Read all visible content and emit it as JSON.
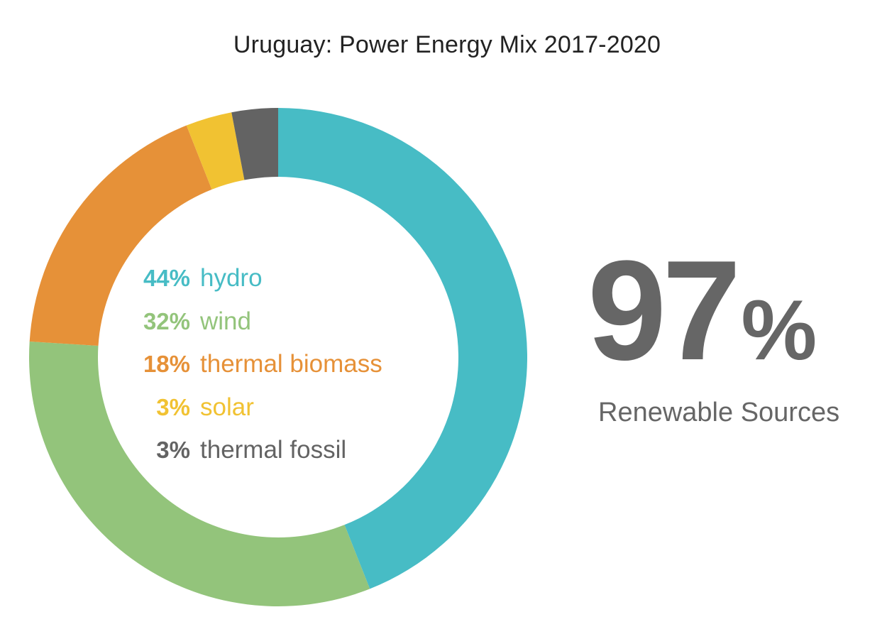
{
  "chart_data": {
    "type": "pie",
    "title": "Uruguay: Power Energy Mix 2017-2020",
    "series": [
      {
        "name": "hydro",
        "value": 44,
        "label": "44%",
        "color": "#47bcc5"
      },
      {
        "name": "wind",
        "value": 32,
        "label": "32%",
        "color": "#93c47b"
      },
      {
        "name": "thermal biomass",
        "value": 18,
        "label": "18%",
        "color": "#e69138"
      },
      {
        "name": "solar",
        "value": 3,
        "label": "3%",
        "color": "#f1c232"
      },
      {
        "name": "thermal fossil",
        "value": 3,
        "label": "3%",
        "color": "#636363"
      }
    ],
    "start": "top",
    "direction": "clockwise",
    "legend_position": "center"
  },
  "highlight": {
    "number": "97",
    "sign": "%",
    "caption": "Renewable Sources",
    "color": "#666666"
  }
}
